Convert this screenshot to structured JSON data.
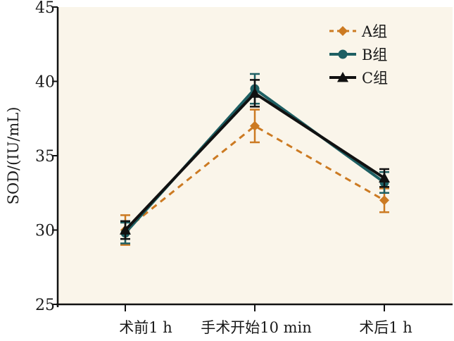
{
  "chart_data": {
    "type": "line",
    "title": "",
    "xlabel": "",
    "ylabel": "SOD/(IU/mL)",
    "categories": [
      "术前1 h",
      "手术开始10 min",
      "术后1 h"
    ],
    "ylim": [
      25,
      45
    ],
    "yticks": [
      25,
      30,
      35,
      40,
      45
    ],
    "grid": false,
    "legend_position": "top-right",
    "background": "#faf5ea",
    "series": [
      {
        "name": "A组",
        "values": [
          30.0,
          37.0,
          32.0
        ],
        "errors": [
          1.0,
          1.1,
          0.8
        ],
        "color": "#cc7a22",
        "line_style": "dashed",
        "marker": "diamond"
      },
      {
        "name": "B组",
        "values": [
          29.8,
          39.5,
          33.2
        ],
        "errors": [
          0.7,
          1.0,
          0.7
        ],
        "color": "#1e5f63",
        "line_style": "solid",
        "marker": "circle"
      },
      {
        "name": "C组",
        "values": [
          30.0,
          39.2,
          33.5
        ],
        "errors": [
          0.6,
          0.9,
          0.6
        ],
        "color": "#111111",
        "line_style": "solid",
        "marker": "triangle"
      }
    ]
  }
}
